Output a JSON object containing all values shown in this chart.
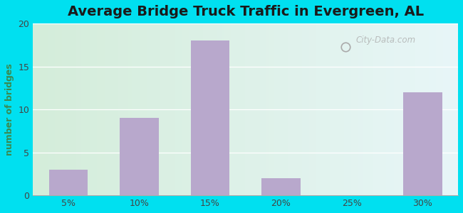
{
  "title": "Average Bridge Truck Traffic in Evergreen, AL",
  "xlabel": "",
  "ylabel": "number of bridges",
  "categories": [
    "5%",
    "10%",
    "15%",
    "20%",
    "25%",
    "30%"
  ],
  "values": [
    3,
    9,
    18,
    2,
    0,
    12
  ],
  "bar_color": "#b8a8cc",
  "ylim": [
    0,
    20
  ],
  "yticks": [
    0,
    5,
    10,
    15,
    20
  ],
  "background_outer": "#00e0f0",
  "background_inner_left": "#d4edda",
  "background_inner_right": "#e8f6f8",
  "title_fontsize": 14,
  "axis_label_color": "#3a8a50",
  "tick_color": "#444444",
  "watermark": "City-Data.com"
}
